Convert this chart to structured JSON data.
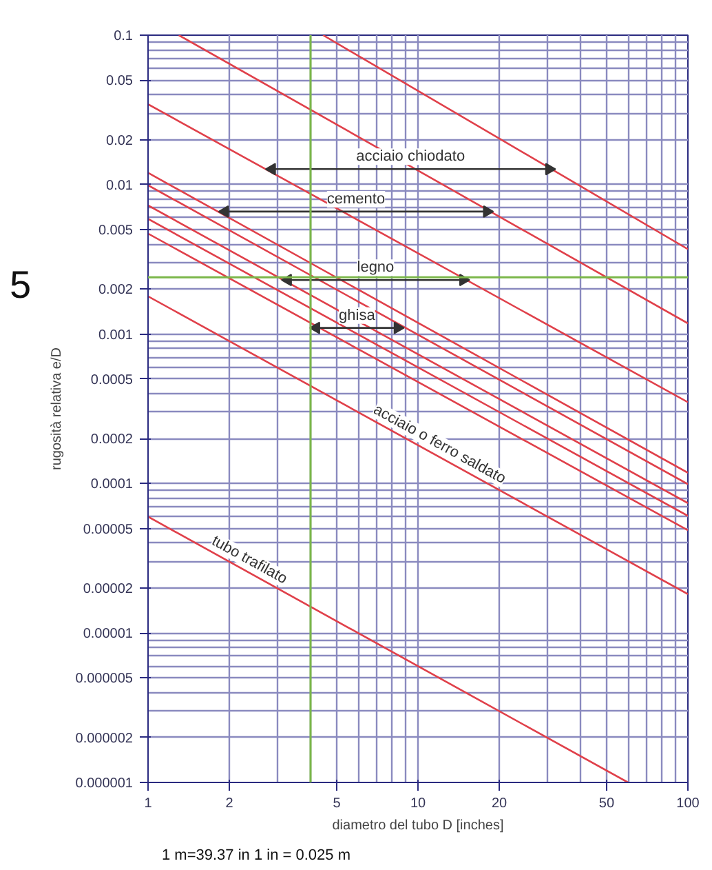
{
  "chart_data": {
    "type": "line",
    "xlabel": "diametro del tubo D [inches]",
    "ylabel": "rugosità relativa e/D",
    "log": "xy",
    "xlim": [
      1,
      100
    ],
    "ylim": [
      1e-06,
      0.1
    ],
    "xticks": [
      1,
      2,
      5,
      10,
      20,
      50,
      100
    ],
    "yticks": [
      0.1,
      0.05,
      0.02,
      0.01,
      0.005,
      0.002,
      0.001,
      0.0005,
      0.0002,
      0.0001,
      {
        "value": 5e-05,
        "label": "0.00005"
      },
      {
        "value": 2e-05,
        "label": "0.00002"
      },
      {
        "value": 1e-05,
        "label": "0.00001"
      },
      {
        "value": 5e-06,
        "label": "0.000005"
      },
      {
        "value": 2e-06,
        "label": "0.000002"
      },
      {
        "value": 1e-06,
        "label": "0.000001"
      }
    ],
    "grid": true,
    "series": [
      {
        "color": "#e0404a",
        "x": [
          4.45,
          100
        ],
        "values": [
          0.1,
          0.0037
        ]
      },
      {
        "color": "#e0404a",
        "x": [
          1.3,
          100
        ],
        "values": [
          0.1,
          0.00118
        ]
      },
      {
        "color": "#e0404a",
        "x": [
          1,
          100
        ],
        "values": [
          0.0345,
          0.00035
        ]
      },
      {
        "color": "#e0404a",
        "x": [
          1,
          100
        ],
        "values": [
          0.012,
          0.000118
        ]
      },
      {
        "color": "#e0404a",
        "x": [
          1,
          100
        ],
        "values": [
          0.0099,
          9.91e-05
        ]
      },
      {
        "color": "#e0404a",
        "x": [
          1,
          100
        ],
        "values": [
          0.00726,
          7.4e-05
        ]
      },
      {
        "color": "#e0404a",
        "x": [
          1,
          100
        ],
        "values": [
          0.0059,
          6.08e-05
        ]
      },
      {
        "color": "#e0404a",
        "x": [
          1,
          100
        ],
        "values": [
          0.0047,
          4.87e-05
        ]
      },
      {
        "name": "acciaio o ferro saldato",
        "color": "#e0404a",
        "x": [
          1,
          100
        ],
        "values": [
          0.00179,
          1.82e-05
        ]
      },
      {
        "name": "tubo trafilato",
        "color": "#e0404a",
        "x": [
          1,
          60
        ],
        "values": [
          6e-05,
          1e-06
        ]
      },
      {
        "marker": "triangle",
        "name": "acciaio chiodato",
        "color": "#333333",
        "x": [
          2.88,
          30.6
        ],
        "values": [
          0.0127,
          0.0127
        ]
      },
      {
        "marker": "triangle",
        "name": "cemento",
        "color": "#333333",
        "x": [
          1.93,
          18
        ],
        "values": [
          0.0066,
          0.0066
        ]
      },
      {
        "marker": "triangle",
        "name": "legno",
        "color": "#333333",
        "x": [
          3.3,
          14.7
        ],
        "values": [
          0.0023,
          0.0023
        ]
      },
      {
        "marker": "triangle",
        "name": "ghisa",
        "color": "#333333",
        "x": [
          4.2,
          8.4
        ],
        "values": [
          0.0011,
          0.0011
        ]
      }
    ],
    "ref_lines": [
      {
        "axis": "x",
        "value": 4,
        "color": "#7ab648"
      },
      {
        "axis": "y",
        "value": 0.0024,
        "color": "#7ab648"
      }
    ],
    "annotations": [
      "5",
      "1 m=39.37 in    1 in = 0.025 m"
    ]
  }
}
